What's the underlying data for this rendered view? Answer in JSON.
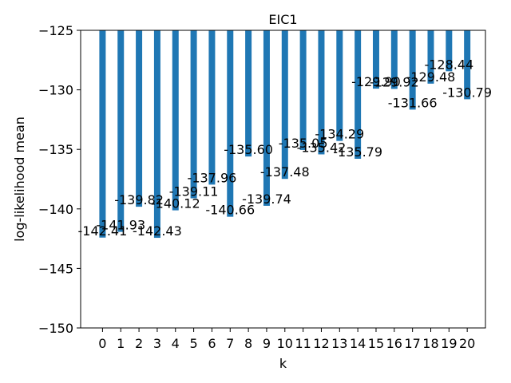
{
  "chart_data": {
    "type": "bar",
    "title": "EIC1",
    "xlabel": "k",
    "ylabel": "log-likelihood mean",
    "ylim": [
      -150,
      -125
    ],
    "yticks": [
      -150,
      -145,
      -140,
      -135,
      -130,
      -125
    ],
    "ytick_labels": [
      "−150",
      "−145",
      "−140",
      "−135",
      "−130",
      "−125"
    ],
    "categories": [
      "0",
      "1",
      "2",
      "3",
      "4",
      "5",
      "6",
      "7",
      "8",
      "9",
      "10",
      "11",
      "12",
      "13",
      "14",
      "15",
      "16",
      "17",
      "18",
      "19",
      "20"
    ],
    "values": [
      -142.41,
      -141.93,
      -139.82,
      -142.43,
      -140.12,
      -139.11,
      -137.96,
      -140.66,
      -135.6,
      -139.74,
      -137.48,
      -135.05,
      -135.42,
      -134.29,
      -135.79,
      -129.9,
      -129.92,
      -131.66,
      -129.48,
      -128.44,
      -130.79
    ],
    "value_labels": [
      "-142.41",
      "-141.93",
      "-139.82",
      "-142.43",
      "-140.12",
      "-139.11",
      "-137.96",
      "-140.66",
      "-135.60",
      "-139.74",
      "-137.48",
      "-135.05",
      "-135.42",
      "-134.29",
      "-135.79",
      "-129.90",
      "-129.92",
      "-131.66",
      "-129.48",
      "-128.44",
      "-130.79"
    ],
    "bar_color": "#1f77b4",
    "grid": false,
    "legend": "none"
  }
}
